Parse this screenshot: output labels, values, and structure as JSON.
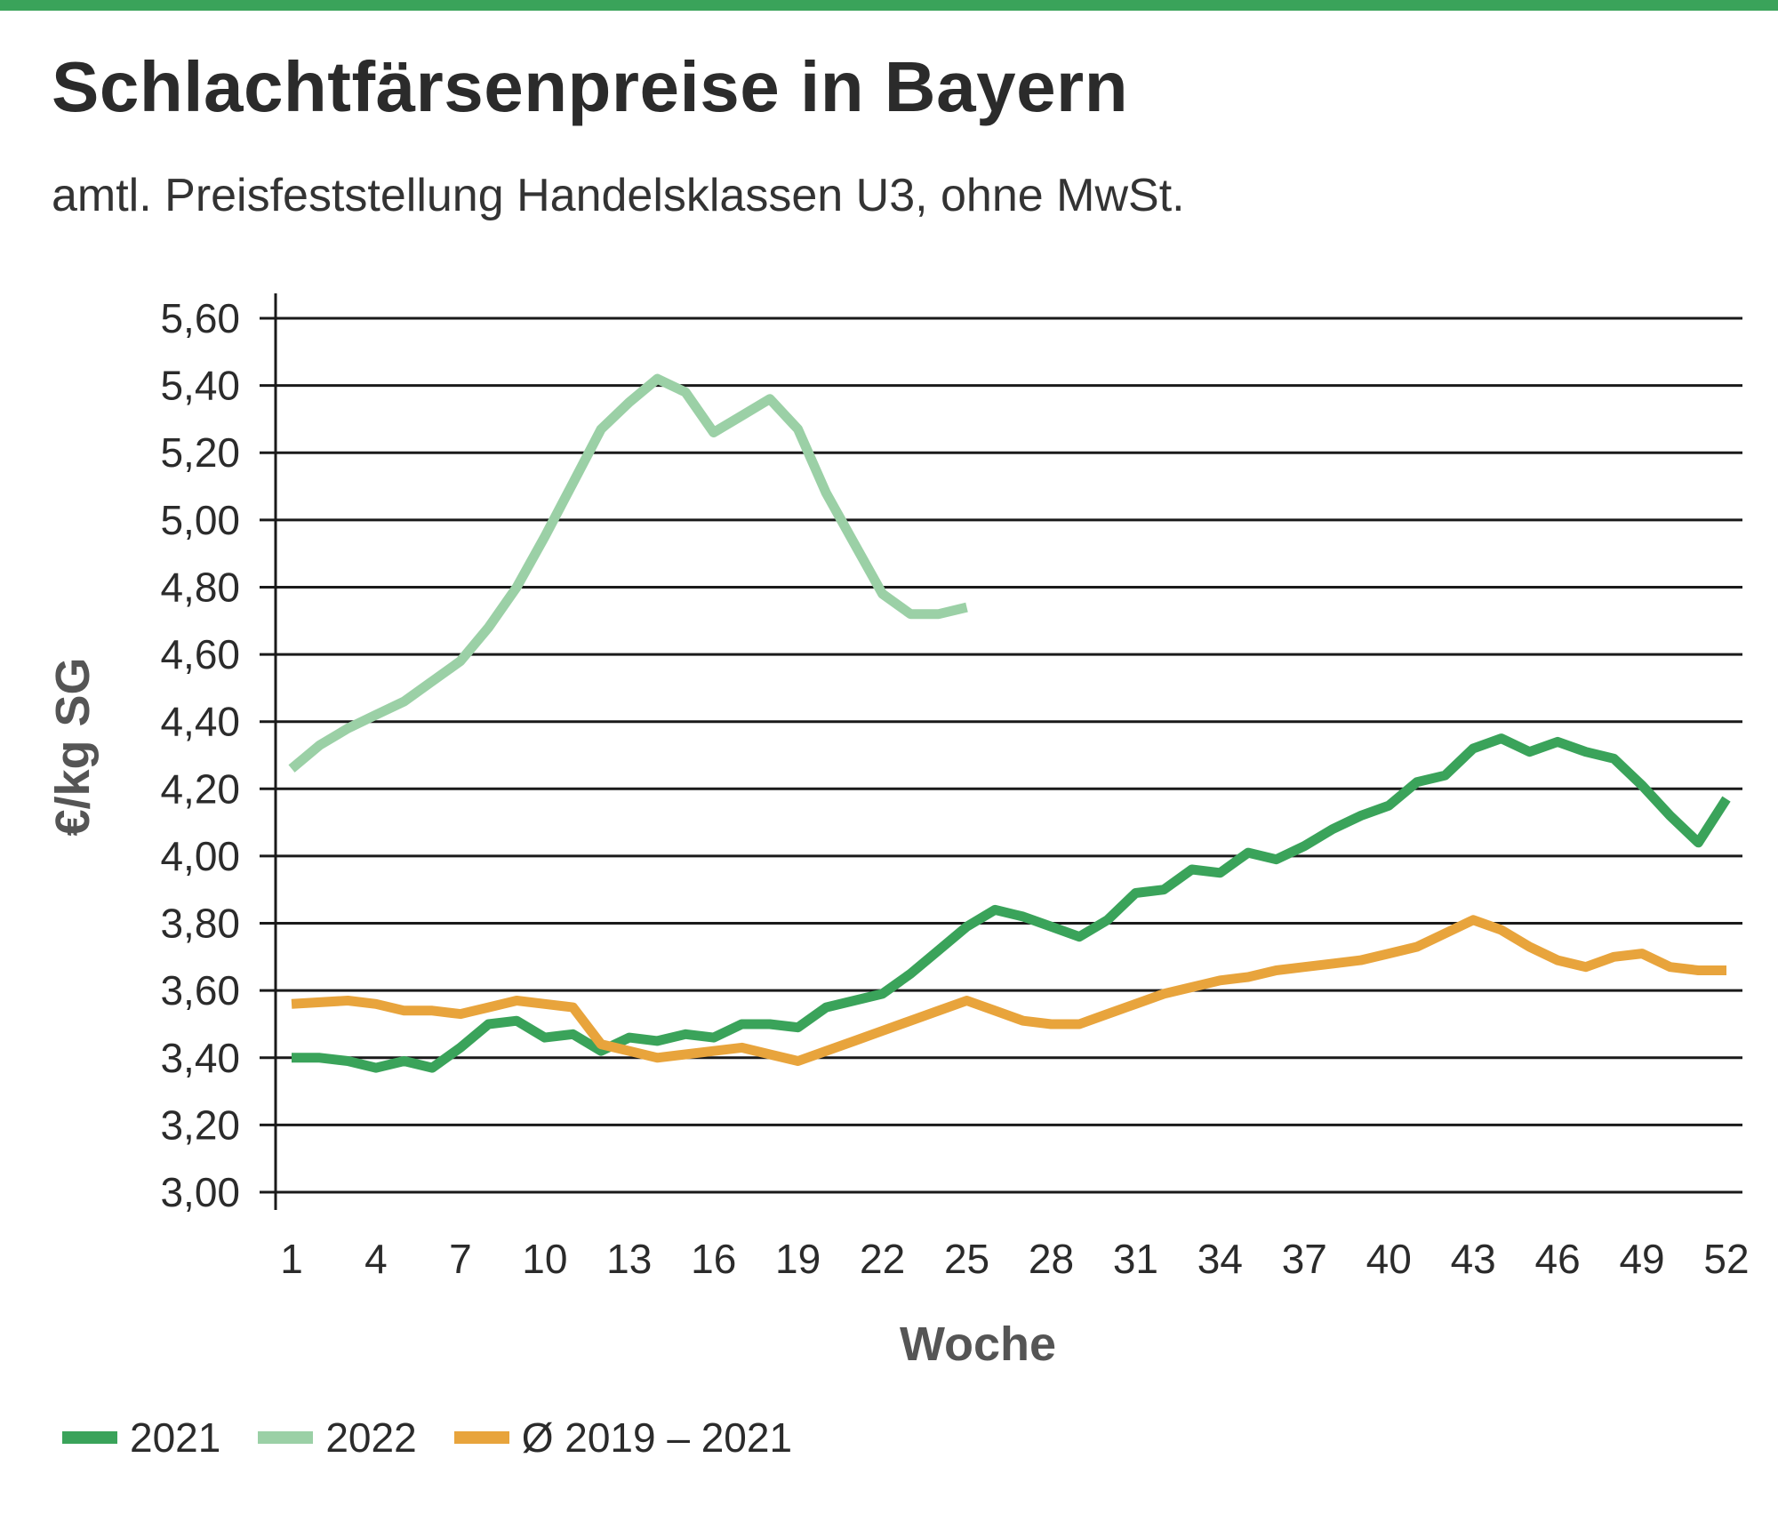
{
  "header": {
    "title": "Schlachtfärsenpreise in Bayern",
    "subtitle": "amtl. Preisfeststellung Handelsklassen U3, ohne MwSt."
  },
  "colors": {
    "top_bar": "#3aa35a",
    "series_2021": "#3aa35a",
    "series_2022": "#9bd0a6",
    "series_avg": "#e8a43c",
    "grid": "#1a1a1a"
  },
  "legend": {
    "items": [
      {
        "label": "2021",
        "color": "#3aa35a"
      },
      {
        "label": "2022",
        "color": "#9bd0a6"
      },
      {
        "label": "Ø 2019 – 2021",
        "color": "#e8a43c"
      }
    ]
  },
  "chart_data": {
    "type": "line",
    "title": "Schlachtfärsenpreise in Bayern",
    "subtitle": "amtl. Preisfeststellung Handelsklassen U3, ohne MwSt.",
    "xlabel": "Woche",
    "ylabel": "€/kg SG",
    "xlim": [
      1,
      52
    ],
    "ylim": [
      3.0,
      5.6
    ],
    "x_ticks": [
      1,
      4,
      7,
      10,
      13,
      16,
      19,
      22,
      25,
      28,
      31,
      34,
      37,
      40,
      43,
      46,
      49,
      52
    ],
    "y_ticks": [
      3.0,
      3.2,
      3.4,
      3.6,
      3.8,
      4.0,
      4.2,
      4.4,
      4.6,
      4.8,
      5.0,
      5.2,
      5.4,
      5.6
    ],
    "y_tick_labels": [
      "3,00",
      "3,20",
      "3,40",
      "3,60",
      "3,80",
      "4,00",
      "4,20",
      "4,40",
      "4,60",
      "4,80",
      "5,00",
      "5,20",
      "5,40",
      "5,60"
    ],
    "grid": "horizontal",
    "legend_position": "bottom-left",
    "series": [
      {
        "name": "2021",
        "color": "#3aa35a",
        "x": [
          1,
          2,
          3,
          4,
          5,
          6,
          7,
          8,
          9,
          10,
          11,
          12,
          13,
          14,
          15,
          16,
          17,
          18,
          19,
          20,
          21,
          22,
          23,
          24,
          25,
          26,
          27,
          28,
          29,
          30,
          31,
          32,
          33,
          34,
          35,
          36,
          37,
          38,
          39,
          40,
          41,
          42,
          43,
          44,
          45,
          46,
          47,
          48,
          49,
          50,
          51,
          52
        ],
        "values": [
          3.4,
          3.4,
          3.39,
          3.37,
          3.39,
          3.37,
          3.43,
          3.5,
          3.51,
          3.46,
          3.47,
          3.42,
          3.46,
          3.45,
          3.47,
          3.46,
          3.5,
          3.5,
          3.49,
          3.55,
          3.57,
          3.59,
          3.65,
          3.72,
          3.79,
          3.84,
          3.82,
          3.79,
          3.76,
          3.81,
          3.89,
          3.9,
          3.96,
          3.95,
          4.01,
          3.99,
          4.03,
          4.08,
          4.12,
          4.15,
          4.22,
          4.24,
          4.32,
          4.35,
          4.31,
          4.34,
          4.31,
          4.29,
          4.21,
          4.12,
          4.04,
          4.17
        ]
      },
      {
        "name": "2022",
        "color": "#9bd0a6",
        "x": [
          1,
          2,
          3,
          4,
          5,
          6,
          7,
          8,
          9,
          10,
          11,
          12,
          13,
          14,
          15,
          16,
          17,
          18,
          19,
          20,
          21,
          22,
          23,
          24,
          25
        ],
        "values": [
          4.26,
          4.33,
          4.38,
          4.42,
          4.46,
          4.52,
          4.58,
          4.68,
          4.8,
          4.95,
          5.11,
          5.27,
          5.35,
          5.42,
          5.38,
          5.26,
          5.31,
          5.36,
          5.27,
          5.08,
          4.93,
          4.78,
          4.72,
          4.72,
          4.74
        ]
      },
      {
        "name": "Ø 2019 – 2021",
        "color": "#e8a43c",
        "x": [
          1,
          3,
          4,
          5,
          6,
          7,
          8,
          9,
          10,
          11,
          12,
          13,
          14,
          15,
          16,
          17,
          18,
          19,
          20,
          21,
          22,
          23,
          24,
          25,
          26,
          27,
          28,
          29,
          30,
          31,
          32,
          33,
          34,
          35,
          36,
          37,
          38,
          39,
          40,
          41,
          42,
          43,
          44,
          45,
          46,
          47,
          48,
          49,
          50,
          51,
          52
        ],
        "values": [
          3.56,
          3.57,
          3.56,
          3.54,
          3.54,
          3.53,
          3.55,
          3.57,
          3.56,
          3.55,
          3.44,
          3.42,
          3.4,
          3.41,
          3.42,
          3.43,
          3.41,
          3.39,
          3.42,
          3.45,
          3.48,
          3.51,
          3.54,
          3.57,
          3.54,
          3.51,
          3.5,
          3.5,
          3.53,
          3.56,
          3.59,
          3.61,
          3.63,
          3.64,
          3.66,
          3.67,
          3.68,
          3.69,
          3.71,
          3.73,
          3.77,
          3.81,
          3.78,
          3.73,
          3.69,
          3.67,
          3.7,
          3.71,
          3.67,
          3.66,
          3.66
        ]
      }
    ]
  }
}
